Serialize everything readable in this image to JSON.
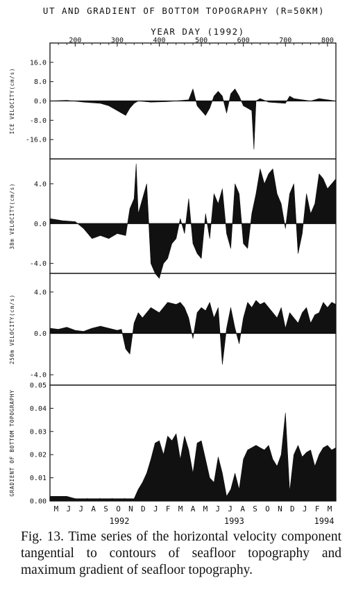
{
  "chart_data": {
    "type": "area",
    "title": "UT AND GRADIENT OF BOTTOM TOPOGRAPHY (R=50KM)",
    "top_axis": {
      "label": "YEAR DAY (1992)",
      "range": [
        140,
        820
      ],
      "ticks": [
        200,
        300,
        400,
        500,
        600,
        700,
        800
      ]
    },
    "bottom_axis": {
      "month_labels": [
        "M",
        "J",
        "J",
        "A",
        "S",
        "O",
        "N",
        "D",
        "J",
        "F",
        "M",
        "A",
        "M",
        "J",
        "J",
        "A",
        "S",
        "O",
        "N",
        "D",
        "J",
        "F",
        "M"
      ],
      "year_labels": [
        {
          "text": "1992",
          "day": 305
        },
        {
          "text": "1993",
          "day": 578
        },
        {
          "text": "1994",
          "day": 792
        }
      ]
    },
    "panels": [
      {
        "id": "ice",
        "ylabel": "ICE VELOCITY(cm/s)",
        "ylim": [
          -24,
          24
        ],
        "ticks": [
          16.0,
          8.0,
          0.0,
          -8.0,
          -16.0
        ],
        "tick_labels": [
          "16.0",
          "8.0",
          "0.0",
          "-8.0",
          "-16.0"
        ],
        "x": [
          140,
          180,
          220,
          260,
          280,
          300,
          310,
          320,
          330,
          340,
          350,
          380,
          420,
          470,
          480,
          490,
          500,
          510,
          520,
          530,
          540,
          550,
          560,
          570,
          580,
          590,
          600,
          610,
          620,
          625,
          630,
          640,
          660,
          700,
          710,
          720,
          740,
          760,
          780,
          800,
          820
        ],
        "y": [
          0,
          0.3,
          -0.5,
          -1,
          -2,
          -4,
          -5,
          -6,
          -3,
          -1,
          0,
          -0.5,
          -0.3,
          0.5,
          5,
          -2,
          -4,
          -6,
          -3,
          2,
          4,
          2,
          -5,
          3,
          5,
          2,
          -2,
          -3,
          -4,
          -20,
          0,
          1,
          -0.5,
          -1,
          2,
          1,
          0.5,
          0,
          1,
          0.5,
          0
        ]
      },
      {
        "id": "38m",
        "ylabel": "38m VELOCITY(cm/s)",
        "ylim": [
          -5,
          6.5
        ],
        "ticks": [
          4.0,
          0.0,
          -4.0
        ],
        "tick_labels": [
          "4.0",
          "0.0",
          "-4.0"
        ],
        "x": [
          140,
          170,
          200,
          220,
          240,
          260,
          280,
          300,
          320,
          330,
          340,
          345,
          350,
          360,
          370,
          380,
          390,
          400,
          410,
          420,
          430,
          440,
          450,
          460,
          470,
          480,
          490,
          500,
          510,
          520,
          530,
          540,
          550,
          560,
          570,
          580,
          590,
          600,
          610,
          620,
          630,
          640,
          650,
          660,
          670,
          680,
          690,
          700,
          710,
          720,
          730,
          740,
          750,
          760,
          770,
          780,
          790,
          800,
          810,
          820
        ],
        "y": [
          0.5,
          0.3,
          0.2,
          -0.5,
          -1.5,
          -1.2,
          -1.5,
          -1,
          -1.2,
          1.5,
          2.5,
          6,
          1,
          2.5,
          4,
          -4,
          -5,
          -5.5,
          -4,
          -3.5,
          -2,
          -1.5,
          0.5,
          -1,
          2.5,
          -2,
          -3,
          -3.5,
          1,
          -1.5,
          3,
          2,
          3.5,
          -1,
          -2.5,
          4,
          3,
          -2,
          -2.5,
          1,
          3,
          5.5,
          4,
          5,
          5.5,
          3,
          2,
          -0.5,
          3,
          4,
          -3,
          -1,
          3,
          1,
          2,
          5,
          4.5,
          3.5,
          4,
          4.5
        ]
      },
      {
        "id": "250m",
        "ylabel": "250m VELOCITY(cm/s)",
        "ylim": [
          -5,
          5.8
        ],
        "ticks": [
          4.0,
          0.0,
          -4.0
        ],
        "tick_labels": [
          "4.0",
          "0.0",
          "-4.0"
        ],
        "x": [
          140,
          160,
          180,
          200,
          220,
          240,
          260,
          280,
          300,
          310,
          320,
          330,
          340,
          350,
          360,
          380,
          400,
          420,
          440,
          450,
          460,
          470,
          480,
          490,
          500,
          510,
          520,
          530,
          540,
          550,
          560,
          570,
          580,
          590,
          600,
          610,
          620,
          630,
          640,
          650,
          660,
          670,
          680,
          690,
          700,
          710,
          720,
          730,
          740,
          750,
          760,
          770,
          780,
          790,
          800,
          810,
          820
        ],
        "y": [
          0.5,
          0.4,
          0.6,
          0.3,
          0.2,
          0.5,
          0.7,
          0.5,
          0.3,
          0.4,
          -1.5,
          -2,
          1,
          2,
          1.5,
          2.5,
          2,
          3,
          2.8,
          3,
          2.5,
          1.5,
          -0.5,
          2,
          2.5,
          2.2,
          3,
          1.5,
          2.5,
          -3,
          0.5,
          2.5,
          0.5,
          -1,
          1.5,
          3,
          2.5,
          3.2,
          2.8,
          3,
          2.5,
          2,
          1.5,
          2.5,
          0.5,
          2,
          1.5,
          1,
          2,
          2.5,
          1,
          1.8,
          2,
          3,
          2.5,
          3,
          2.8
        ]
      },
      {
        "id": "gradient",
        "ylabel": "GRADIENT OF BOTTOM TOPOGRAPHY",
        "ylim": [
          0,
          0.05
        ],
        "ticks": [
          0.05,
          0.04,
          0.03,
          0.02,
          0.01,
          0.0
        ],
        "tick_labels": [
          "0.05",
          "0.04",
          "0.03",
          "0.02",
          "0.01",
          "0.00"
        ],
        "x": [
          140,
          160,
          180,
          200,
          220,
          240,
          260,
          280,
          300,
          320,
          340,
          350,
          360,
          370,
          380,
          390,
          400,
          410,
          420,
          430,
          440,
          450,
          460,
          470,
          480,
          490,
          500,
          510,
          520,
          530,
          540,
          550,
          560,
          570,
          580,
          590,
          600,
          610,
          620,
          630,
          640,
          650,
          660,
          670,
          680,
          690,
          700,
          710,
          720,
          730,
          740,
          750,
          760,
          770,
          780,
          790,
          800,
          810,
          820
        ],
        "y": [
          0.002,
          0.002,
          0.002,
          0.001,
          0.001,
          0.001,
          0.001,
          0.001,
          0.001,
          0.001,
          0.001,
          0.005,
          0.008,
          0.012,
          0.018,
          0.025,
          0.026,
          0.02,
          0.028,
          0.026,
          0.029,
          0.018,
          0.028,
          0.022,
          0.012,
          0.025,
          0.026,
          0.018,
          0.01,
          0.008,
          0.019,
          0.012,
          0.002,
          0.005,
          0.012,
          0.005,
          0.018,
          0.022,
          0.023,
          0.024,
          0.023,
          0.022,
          0.024,
          0.018,
          0.015,
          0.02,
          0.038,
          0.004,
          0.02,
          0.024,
          0.019,
          0.021,
          0.022,
          0.015,
          0.02,
          0.023,
          0.024,
          0.022,
          0.023
        ]
      }
    ]
  },
  "caption": "Fig. 13. Time series of the horizontal velocity component tangential to contours of seafloor topography and maximum gradient of seafloor topography."
}
